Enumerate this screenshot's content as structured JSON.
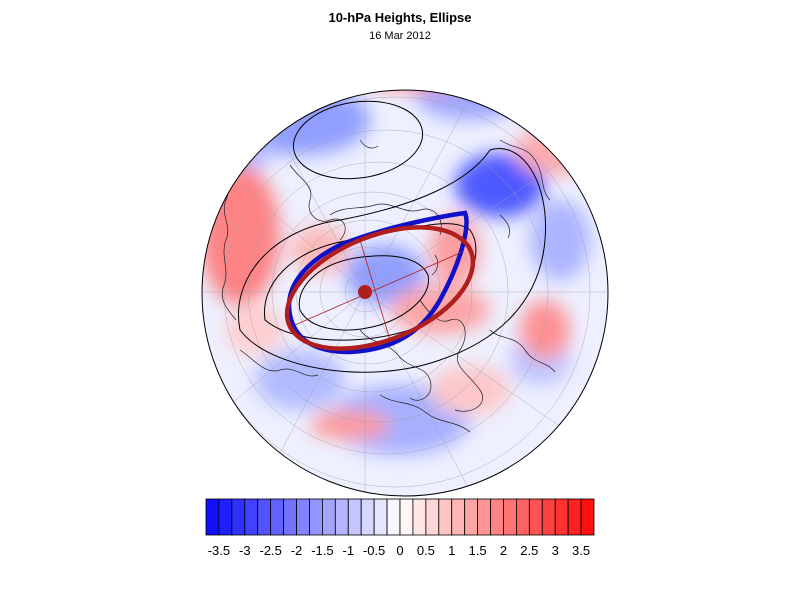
{
  "header": {
    "title": "10-hPa Heights, Ellipse",
    "date": "16 Mar 2012"
  },
  "map": {
    "projection": "north-polar-stereographic",
    "field": "10-hPa height anomaly",
    "ellipse_colors": {
      "blue": "#1010c8",
      "red": "#b01e1e"
    },
    "center_marker_color": "#b01e1e"
  },
  "colorbar": {
    "min": -3.75,
    "max": 3.75,
    "step": 0.25,
    "colors": {
      "negative_end": "#1010ff",
      "neutral": "#ffffff",
      "positive_end": "#ff1010"
    },
    "tick_labels": [
      "-3.5",
      "-3",
      "-2.5",
      "-2",
      "-1.5",
      "-1",
      "-0.5",
      "0",
      "0.5",
      "1",
      "1.5",
      "2",
      "2.5",
      "3",
      "3.5"
    ],
    "tick_values": [
      -3.5,
      -3,
      -2.5,
      -2,
      -1.5,
      -1,
      -0.5,
      0,
      0.5,
      1,
      1.5,
      2,
      2.5,
      3,
      3.5
    ]
  }
}
